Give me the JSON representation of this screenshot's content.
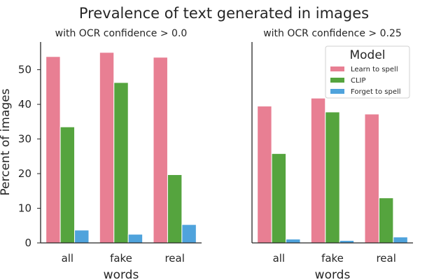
{
  "suptitle": "Prevalence of text generated in images",
  "ylabel": "Percent of images",
  "legend": {
    "title": "Model",
    "placement": "top-right",
    "entries": [
      {
        "label": "Learn to spell",
        "color": "#e87f93"
      },
      {
        "label": "CLIP",
        "color": "#55a43e"
      },
      {
        "label": "Forget to spell",
        "color": "#4fa3dc"
      }
    ]
  },
  "chart_data": [
    {
      "type": "bar",
      "title": "with OCR confidence > 0.0",
      "xlabel": "words",
      "ylabel": "Percent of images",
      "ylim": [
        0,
        58
      ],
      "yticks": [
        "0",
        "10",
        "20",
        "30",
        "40",
        "50"
      ],
      "categories": [
        "all",
        "fake",
        "real"
      ],
      "series": [
        {
          "name": "Learn to spell",
          "values": [
            53.8,
            55.0,
            53.6
          ],
          "color": "#e87f93"
        },
        {
          "name": "CLIP",
          "values": [
            33.5,
            46.3,
            19.7
          ],
          "color": "#55a43e"
        },
        {
          "name": "Forget to spell",
          "values": [
            3.7,
            2.5,
            5.3
          ],
          "color": "#4fa3dc"
        }
      ]
    },
    {
      "type": "bar",
      "title": "with OCR confidence > 0.25",
      "xlabel": "words",
      "ylim": [
        0,
        58
      ],
      "categories": [
        "all",
        "fake",
        "real"
      ],
      "series": [
        {
          "name": "Learn to spell",
          "values": [
            39.5,
            41.8,
            37.2
          ],
          "color": "#e87f93"
        },
        {
          "name": "CLIP",
          "values": [
            25.8,
            37.8,
            13.0
          ],
          "color": "#55a43e"
        },
        {
          "name": "Forget to spell",
          "values": [
            1.1,
            0.7,
            1.7
          ],
          "color": "#4fa3dc"
        }
      ]
    }
  ]
}
